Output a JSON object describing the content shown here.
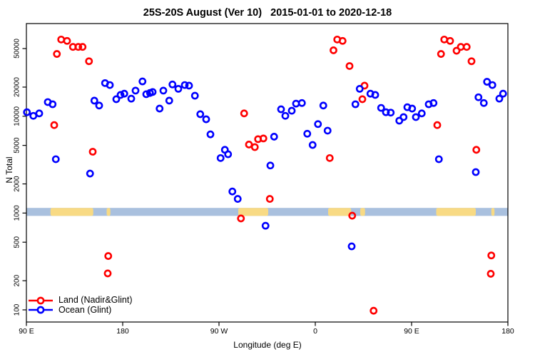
{
  "chart_data": {
    "type": "scatter",
    "title": "25S-20S August (Ver 10)   2015-01-01 to 2020-12-18",
    "xlabel": "Longitude (deg E)",
    "ylabel": "N Total",
    "grid": false,
    "legend_position": "bottom-left",
    "x_axis": {
      "description": "Longitude wrapped over 450 deg: 90E -> 180 -> 90W -> 0 -> 90E -> 180",
      "range_axis_deg": [
        90,
        540
      ],
      "ticks": [
        {
          "pos": 90,
          "label": "90 E"
        },
        {
          "pos": 180,
          "label": "180"
        },
        {
          "pos": 270,
          "label": "90 W"
        },
        {
          "pos": 360,
          "label": "0"
        },
        {
          "pos": 450,
          "label": "90 E"
        },
        {
          "pos": 540,
          "label": "180"
        }
      ]
    },
    "y_axis": {
      "scale": "log10",
      "range": [
        75,
        90000
      ],
      "ticks": [
        100,
        200,
        500,
        1000,
        2000,
        5000,
        10000,
        20000,
        50000
      ]
    },
    "map_strip": {
      "description": "land/ocean strip of the 25S-20S latitude band drawn at N near 1000",
      "ocean_color": "#a9c0de",
      "land_color": "#f8da84",
      "value_range": [
        935,
        1130
      ],
      "land_segments_deg": [
        [
          112.5,
          152.5
        ],
        [
          165,
          168.5
        ],
        [
          288,
          316
        ],
        [
          372,
          393.5
        ],
        [
          402,
          406.5
        ],
        [
          473,
          510
        ],
        [
          524.5,
          527.5
        ]
      ]
    },
    "series": [
      {
        "name": "Land (Nadir&Glint)",
        "color": "#ff0000",
        "marker": "open-circle",
        "points": [
          [
            116,
            8100
          ],
          [
            118.5,
            44000
          ],
          [
            122.5,
            62000
          ],
          [
            128,
            60000
          ],
          [
            133.5,
            52000
          ],
          [
            138.5,
            52000
          ],
          [
            142.5,
            52000
          ],
          [
            148.5,
            37000
          ],
          [
            152,
            4300
          ],
          [
            166,
            238
          ],
          [
            166.5,
            360
          ],
          [
            290.5,
            880
          ],
          [
            293.5,
            10700
          ],
          [
            298,
            5100
          ],
          [
            303.5,
            4800
          ],
          [
            306.5,
            5800
          ],
          [
            311.5,
            5900
          ],
          [
            317.5,
            1400
          ],
          [
            373.5,
            3700
          ],
          [
            377,
            48000
          ],
          [
            380.5,
            62000
          ],
          [
            385.5,
            60000
          ],
          [
            392,
            33000
          ],
          [
            394.5,
            940
          ],
          [
            404,
            15000
          ],
          [
            406,
            20700
          ],
          [
            414.5,
            98
          ],
          [
            474,
            8100
          ],
          [
            477.5,
            44000
          ],
          [
            480.5,
            62000
          ],
          [
            486,
            60000
          ],
          [
            492,
            47500
          ],
          [
            496,
            52000
          ],
          [
            501.5,
            52000
          ],
          [
            506,
            37000
          ],
          [
            510.5,
            4500
          ],
          [
            524,
            236
          ],
          [
            524.5,
            365
          ]
        ]
      },
      {
        "name": "Ocean (Glint)",
        "color": "#0000ff",
        "marker": "open-circle",
        "points": [
          [
            90.5,
            11000
          ],
          [
            96.5,
            10100
          ],
          [
            102,
            10700
          ],
          [
            110,
            14000
          ],
          [
            114.5,
            13300
          ],
          [
            117.5,
            3600
          ],
          [
            149.5,
            2560
          ],
          [
            153.5,
            14500
          ],
          [
            158,
            12900
          ],
          [
            163.5,
            22000
          ],
          [
            168,
            21000
          ],
          [
            174,
            15000
          ],
          [
            178,
            16600
          ],
          [
            181.5,
            17100
          ],
          [
            188,
            15200
          ],
          [
            192,
            18400
          ],
          [
            198.5,
            22900
          ],
          [
            202,
            16900
          ],
          [
            205.5,
            17400
          ],
          [
            208,
            17800
          ],
          [
            214.5,
            12000
          ],
          [
            218,
            18400
          ],
          [
            223.5,
            14500
          ],
          [
            226.5,
            21300
          ],
          [
            232,
            19200
          ],
          [
            238,
            21000
          ],
          [
            242,
            20700
          ],
          [
            247.5,
            16300
          ],
          [
            252.5,
            10500
          ],
          [
            258,
            9300
          ],
          [
            262,
            6500
          ],
          [
            271.5,
            3700
          ],
          [
            275.5,
            4500
          ],
          [
            278.5,
            4050
          ],
          [
            282.5,
            1670
          ],
          [
            287.5,
            1400
          ],
          [
            313.5,
            740
          ],
          [
            318,
            3100
          ],
          [
            321.5,
            6150
          ],
          [
            328,
            11800
          ],
          [
            332,
            10100
          ],
          [
            338,
            11400
          ],
          [
            342,
            13500
          ],
          [
            347.5,
            13700
          ],
          [
            352.5,
            6600
          ],
          [
            357.5,
            5050
          ],
          [
            362.5,
            8300
          ],
          [
            367.5,
            12900
          ],
          [
            371.5,
            7100
          ],
          [
            394,
            453
          ],
          [
            397.5,
            13300
          ],
          [
            401.5,
            19200
          ],
          [
            411.5,
            17100
          ],
          [
            416,
            16600
          ],
          [
            421.5,
            12200
          ],
          [
            426,
            11000
          ],
          [
            430.5,
            10900
          ],
          [
            438.5,
            9000
          ],
          [
            442.5,
            9800
          ],
          [
            446,
            12400
          ],
          [
            450.5,
            12000
          ],
          [
            454,
            9800
          ],
          [
            459.5,
            10700
          ],
          [
            466,
            13300
          ],
          [
            470.5,
            13700
          ],
          [
            475.5,
            3600
          ],
          [
            510,
            2650
          ],
          [
            512.5,
            15700
          ],
          [
            517.5,
            13700
          ],
          [
            520.5,
            22700
          ],
          [
            525.5,
            21000
          ],
          [
            532,
            15200
          ],
          [
            535.5,
            17100
          ]
        ]
      }
    ]
  }
}
